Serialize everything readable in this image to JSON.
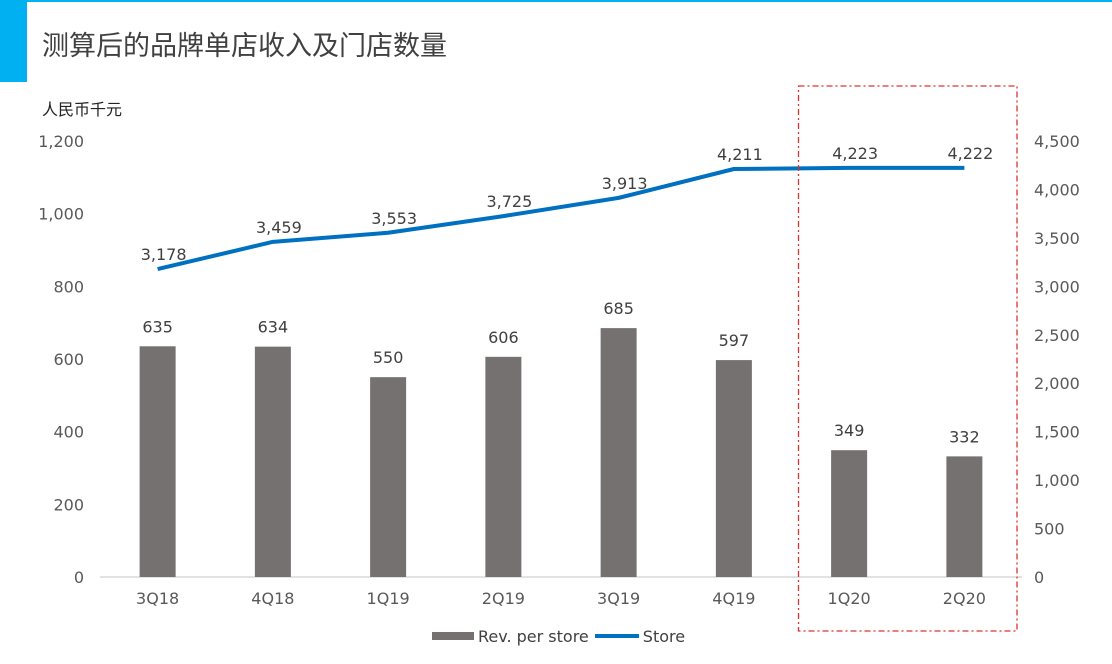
{
  "page": {
    "title": "测算后的品牌单店收入及门店数量",
    "unit_label": "人民币千元"
  },
  "colors": {
    "accent": "#00B0F0",
    "bar": "#767171",
    "line": "#0070C0",
    "highlight_box": "#E03030",
    "axis_text": "#595959",
    "label_text": "#404040"
  },
  "chart_data": {
    "type": "bar+line",
    "categories": [
      "3Q18",
      "4Q18",
      "1Q19",
      "2Q19",
      "3Q19",
      "4Q19",
      "1Q20",
      "2Q20"
    ],
    "series": [
      {
        "name": "Rev. per store",
        "type": "bar",
        "axis": "left",
        "values": [
          635,
          634,
          550,
          606,
          685,
          597,
          349,
          332
        ]
      },
      {
        "name": "Store",
        "type": "line",
        "axis": "right",
        "values": [
          3178,
          3459,
          3553,
          3725,
          3913,
          4211,
          4223,
          4222
        ]
      }
    ],
    "y_left": {
      "min": 0,
      "max": 1200,
      "ticks": [
        "0",
        "200",
        "400",
        "600",
        "800",
        "1,000",
        "1,200"
      ]
    },
    "y_right": {
      "min": 0,
      "max": 4500,
      "ticks": [
        "0",
        "500",
        "1,000",
        "1,500",
        "2,000",
        "2,500",
        "3,000",
        "3,500",
        "4,000",
        "4,500"
      ]
    },
    "grid": false,
    "legend_position": "bottom",
    "highlight": {
      "from_category": "1Q20",
      "to_category": "2Q20",
      "style": "dashed-box"
    }
  }
}
